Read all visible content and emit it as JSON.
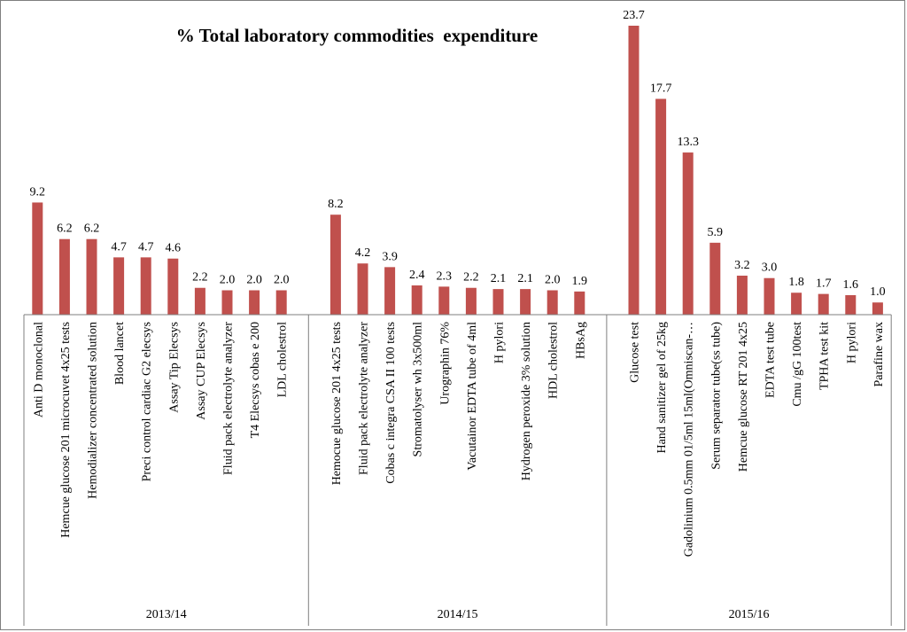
{
  "chart_data": {
    "type": "bar",
    "title": "% Total laboratory commodities  expenditure",
    "xlabel": "",
    "ylabel": "",
    "ylim": [
      0,
      23.7
    ],
    "bar_color": "#c0504d",
    "axis_color": "#7f7f7f",
    "groups": [
      {
        "name": "2013/14",
        "categories": [
          "Anti D monoclonal",
          "Hemcue glucose 201 microcuvet 4x25 tests",
          "Hemodializer concentrated solution",
          "Blood lancet",
          "Preci control cardiac G2 elecsys",
          "Assay Tip Elecsys",
          "Assay CUP Elecsys",
          "Fluid pack electrolyte analyzer",
          "T4 Elecsys cobas e 200",
          "LDL cholestrol"
        ],
        "values": [
          9.2,
          6.2,
          6.2,
          4.7,
          4.7,
          4.6,
          2.2,
          2.0,
          2.0,
          2.0
        ],
        "labels": [
          "9.2",
          "6.2",
          "6.2",
          "4.7",
          "4.7",
          "4.6",
          "2.2",
          "2.0",
          "2.0",
          "2.0"
        ]
      },
      {
        "name": "2014/15",
        "categories": [
          "Hemocue glucose 201 4x25 tests",
          "Fluid pack electrolyte analyzer",
          "Cobas c integra CSA II 100 tests",
          "Stromatolyser wh 3x500ml",
          "Urographin 76%",
          "Vacutainor EDTA tube of 4ml",
          "H pylori",
          "Hydrogen peroxide 3% solution",
          "HDL cholestrol",
          "HBsAg"
        ],
        "values": [
          8.2,
          4.2,
          3.9,
          2.4,
          2.3,
          2.2,
          2.1,
          2.1,
          2.0,
          1.9
        ],
        "labels": [
          "8.2",
          "4.2",
          "3.9",
          "2.4",
          "2.3",
          "2.2",
          "2.1",
          "2.1",
          "2.0",
          "1.9"
        ]
      },
      {
        "name": "2015/16",
        "categories": [
          "Glucose test",
          "Hand sanitizer gel of 25kg",
          "Gadolinium 0.5mm 01/5ml 15ml(Omniscan-…",
          "Serum separator tube(ss tube)",
          "Hemcue glucose RT 201 4x25",
          "EDTA test tube",
          "Cmu /gG 100test",
          "TPHA test kit",
          "H pylori",
          "Parafine wax"
        ],
        "values": [
          23.7,
          17.7,
          13.3,
          5.9,
          3.2,
          3.0,
          1.8,
          1.7,
          1.6,
          1.0
        ],
        "labels": [
          "23.7",
          "17.7",
          "13.3",
          "5.9",
          "3.2",
          "3.0",
          "1.8",
          "1.7",
          "1.6",
          "1.0"
        ]
      }
    ]
  }
}
